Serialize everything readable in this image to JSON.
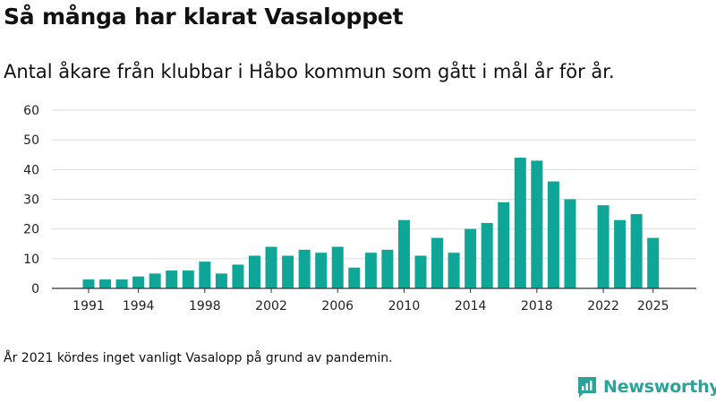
{
  "header": {
    "title": "Så många har klarat Vasaloppet",
    "subtitle": "Antal åkare från klubbar i Håbo kommun som gått i mål år för år."
  },
  "footer": {
    "note": "År 2021 kördes inget vanligt Vasalopp på grund av pandemin.",
    "brand": "Newsworthy"
  },
  "colors": {
    "bar": "#0fa597",
    "grid": "#dddddd",
    "axis": "#333333",
    "brand": "#2aa39a"
  },
  "chart_data": {
    "type": "bar",
    "title": "Så många har klarat Vasaloppet",
    "xlabel": "",
    "ylabel": "",
    "ylim": [
      0,
      60
    ],
    "yticks": [
      0,
      10,
      20,
      30,
      40,
      50,
      60
    ],
    "xtick_labels": [
      "1991",
      "1994",
      "1998",
      "2002",
      "2006",
      "2010",
      "2014",
      "2018",
      "2022",
      "2025"
    ],
    "categories": [
      1991,
      1992,
      1993,
      1994,
      1995,
      1996,
      1997,
      1998,
      1999,
      2000,
      2001,
      2002,
      2003,
      2004,
      2005,
      2006,
      2007,
      2008,
      2009,
      2010,
      2011,
      2012,
      2013,
      2014,
      2015,
      2016,
      2017,
      2018,
      2019,
      2020,
      2021,
      2022,
      2023,
      2024,
      2025
    ],
    "values": [
      3,
      3,
      3,
      4,
      5,
      6,
      6,
      9,
      5,
      8,
      11,
      14,
      11,
      13,
      12,
      14,
      7,
      12,
      13,
      23,
      11,
      17,
      12,
      20,
      22,
      29,
      44,
      43,
      36,
      30,
      null,
      28,
      23,
      25,
      17
    ]
  }
}
